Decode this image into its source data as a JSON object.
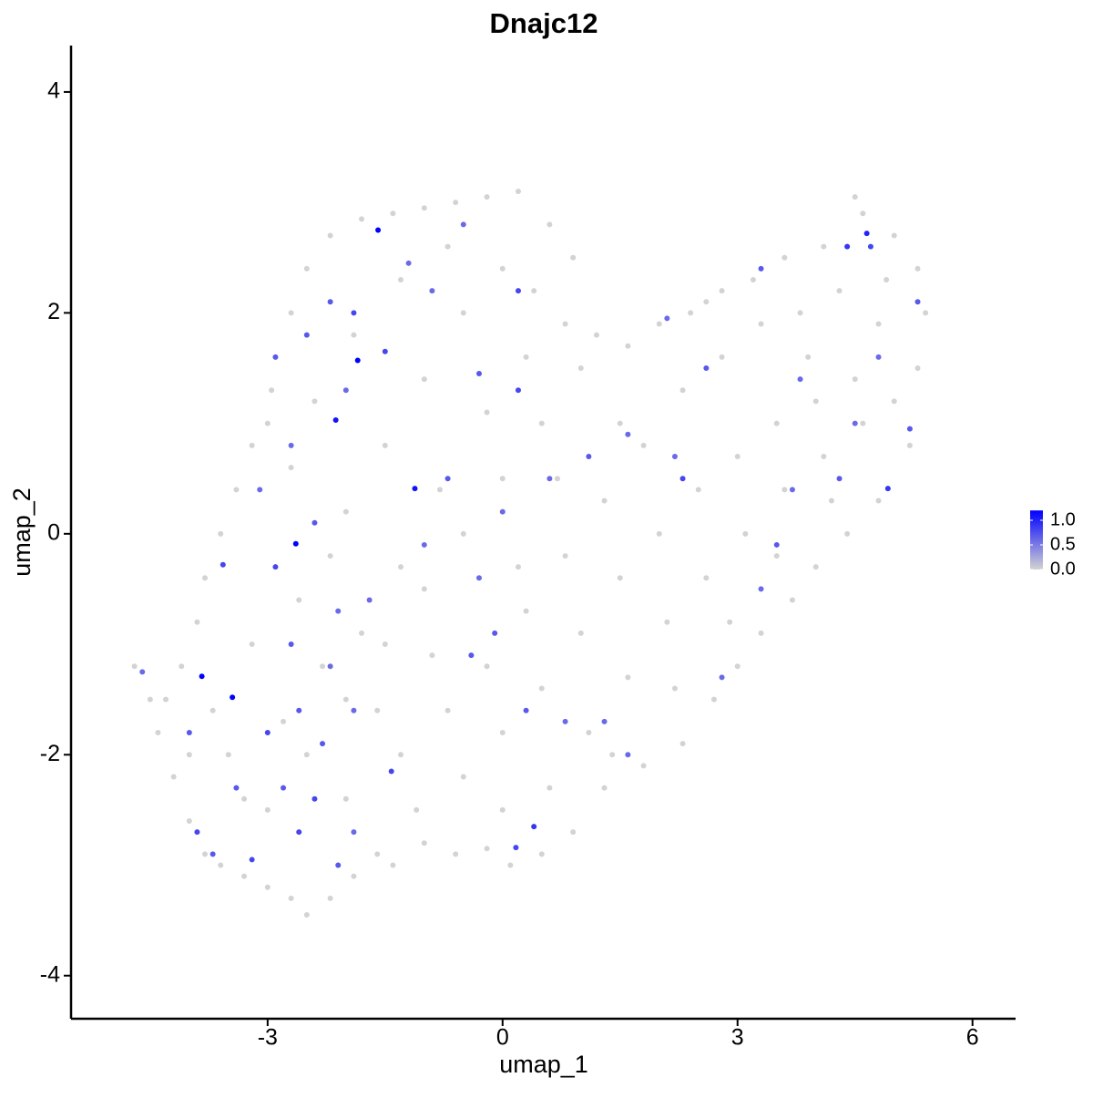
{
  "chart_data": {
    "type": "scatter",
    "title": "Dnajc12",
    "x_label": "umap_1",
    "y_label": "umap_2",
    "xlim": [
      -5.51,
      6.55
    ],
    "ylim": [
      -4.39,
      4.42
    ],
    "xticks": [
      -3,
      0,
      3,
      6
    ],
    "yticks": [
      -4,
      -2,
      0,
      2,
      4
    ],
    "color_low": "#d3d3d3",
    "color_high": "#0000ff",
    "color_lim": [
      0,
      1.2
    ],
    "legend_ticks": [
      {
        "value": 0,
        "label": "0.0"
      },
      {
        "value": 0.5,
        "label": "0.5"
      },
      {
        "value": 1,
        "label": "1.0"
      }
    ],
    "x": [
      -4.7,
      -4.5,
      -4.4,
      -4.2,
      -4.0,
      -3.8,
      -3.6,
      -3.3,
      -3.0,
      -2.7,
      -2.5,
      -2.2,
      -1.9,
      -1.6,
      -1.4,
      -1.0,
      -0.6,
      -0.2,
      0.1,
      0.5,
      0.9,
      1.3,
      1.8,
      2.3,
      2.7,
      3.0,
      3.3,
      3.7,
      4.0,
      4.4,
      4.8,
      5.2,
      5.3,
      5.4,
      5.3,
      5.0,
      4.6,
      4.5,
      4.1,
      3.6,
      3.2,
      2.8,
      2.4,
      2.0,
      1.6,
      1.2,
      0.8,
      0.9,
      0.6,
      0.2,
      -0.2,
      -0.6,
      -1.0,
      -1.4,
      -1.8,
      -2.2,
      -2.5,
      -2.7,
      -2.95,
      -3.0,
      -3.2,
      -3.4,
      -3.6,
      -3.8,
      -3.9,
      -4.1,
      -4.3,
      -3.5,
      -3.0,
      -2.5,
      -2.0,
      -1.5,
      -1.0,
      -0.5,
      0.0,
      0.5,
      1.0,
      -3.2,
      -2.6,
      -2.0,
      -1.5,
      -1.0,
      -0.5,
      0.0,
      -2.4,
      -1.9,
      -1.3,
      -0.7,
      0.4,
      0.3,
      -0.2,
      -0.8,
      -1.3,
      -1.8,
      -2.3,
      -2.8,
      -3.3,
      -2.0,
      -1.3,
      -0.7,
      -0.2,
      0.3,
      0.8,
      1.3,
      1.8,
      2.3,
      2.8,
      3.3,
      3.8,
      4.3,
      4.8,
      4.5,
      4.0,
      3.5,
      3.0,
      2.5,
      2.0,
      1.5,
      1.0,
      0.5,
      0.0,
      -0.5,
      0.6,
      1.1,
      1.6,
      2.1,
      2.6,
      3.1,
      3.6,
      4.1,
      4.6,
      5.0,
      2.2,
      2.9,
      3.5,
      4.2,
      -4.0,
      -3.7,
      -2.7,
      -2.2,
      -1.6,
      -0.9,
      0.2,
      0.7,
      1.5,
      2.6,
      3.9,
      4.9,
      -1.1,
      0.0,
      1.4,
      -1.59,
      -1.85,
      -2.13,
      -1.12,
      -2.64,
      -3.84,
      -3.45,
      4.65,
      4.92,
      0.17,
      -1.42,
      -3.57,
      -4.6,
      -4.0,
      -3.9,
      -3.2,
      -2.6,
      -2.1,
      -2.8,
      -2.3,
      -3.0,
      -2.6,
      -1.9,
      -2.2,
      -2.7,
      -2.1,
      -2.9,
      -2.4,
      -3.1,
      -2.7,
      -2.9,
      -2.5,
      -2.2,
      -1.9,
      -1.5,
      -2.0,
      -1.2,
      -0.5,
      -0.9,
      -0.3,
      0.2,
      0.2,
      -0.7,
      0.0,
      -0.3,
      -0.4,
      0.3,
      0.4,
      0.8,
      1.3,
      1.6,
      0.6,
      1.1,
      1.6,
      2.2,
      2.3,
      2.6,
      2.1,
      3.3,
      3.7,
      3.5,
      4.3,
      4.5,
      4.8,
      5.2,
      5.3,
      4.4,
      4.7,
      3.8,
      2.8,
      3.3,
      -1.7,
      -1.0,
      -0.1,
      -3.4,
      -3.7,
      -2.4,
      -1.9
    ],
    "y": [
      -1.2,
      -1.5,
      -1.8,
      -2.2,
      -2.6,
      -2.9,
      -3.0,
      -3.1,
      -3.2,
      -3.3,
      -3.45,
      -3.3,
      -3.1,
      -2.9,
      -3.0,
      -2.8,
      -2.9,
      -2.85,
      -3.0,
      -2.9,
      -2.7,
      -2.3,
      -2.1,
      -1.9,
      -1.5,
      -1.2,
      -0.9,
      -0.6,
      -0.3,
      0.0,
      0.3,
      0.8,
      1.5,
      2.0,
      2.4,
      2.7,
      2.9,
      3.05,
      2.6,
      2.5,
      2.3,
      2.2,
      2.0,
      1.9,
      1.7,
      1.8,
      1.9,
      2.5,
      2.8,
      3.1,
      3.05,
      3.0,
      2.95,
      2.9,
      2.85,
      2.7,
      2.4,
      2.0,
      1.3,
      1.0,
      0.8,
      0.4,
      0.0,
      -0.4,
      -0.8,
      -1.2,
      -1.5,
      -2.0,
      -2.5,
      -2.0,
      -1.5,
      -1.0,
      -0.5,
      0.0,
      0.5,
      1.0,
      1.5,
      -1.0,
      -0.6,
      0.2,
      0.8,
      1.4,
      2.0,
      2.4,
      1.2,
      1.8,
      2.3,
      2.6,
      2.2,
      1.6,
      1.1,
      0.4,
      -0.3,
      -0.9,
      -1.2,
      -1.7,
      -2.4,
      -2.4,
      -2.0,
      -1.6,
      -1.2,
      -0.7,
      -0.2,
      0.3,
      0.8,
      1.3,
      1.6,
      1.9,
      2.0,
      2.2,
      1.9,
      1.4,
      1.2,
      1.0,
      0.7,
      0.4,
      0.0,
      -0.4,
      -0.9,
      -1.4,
      -1.8,
      -2.2,
      -2.3,
      -1.8,
      -1.3,
      -0.8,
      -0.4,
      0.0,
      0.4,
      0.7,
      1.0,
      1.2,
      -1.4,
      -0.8,
      -0.2,
      0.3,
      -2.0,
      -1.6,
      0.6,
      -0.2,
      -1.6,
      -1.1,
      -0.3,
      0.5,
      1.0,
      2.1,
      1.6,
      2.3,
      -2.5,
      -2.5,
      -2.0,
      2.75,
      1.57,
      1.03,
      0.41,
      -0.09,
      -1.29,
      -1.48,
      2.72,
      0.41,
      -2.84,
      -2.15,
      -0.28,
      -1.25,
      -1.8,
      -2.7,
      -2.95,
      -2.7,
      -3.0,
      -2.3,
      -1.9,
      -1.8,
      -1.6,
      -1.6,
      -1.2,
      -1.0,
      -0.7,
      -0.3,
      0.1,
      0.4,
      0.8,
      1.6,
      1.8,
      2.1,
      2.0,
      1.65,
      1.3,
      2.45,
      2.8,
      2.2,
      1.45,
      1.3,
      2.2,
      0.5,
      0.2,
      -0.4,
      -1.1,
      -1.6,
      -2.65,
      -1.7,
      -1.7,
      -2.0,
      0.5,
      0.7,
      0.9,
      0.7,
      0.5,
      1.5,
      1.95,
      2.4,
      0.4,
      -0.1,
      0.5,
      1.0,
      1.6,
      0.95,
      2.1,
      2.6,
      2.6,
      1.4,
      -1.3,
      -0.5,
      -0.6,
      -0.1,
      -0.9,
      -2.3,
      -2.9,
      -2.4,
      -2.7
    ],
    "expression": [
      0,
      0,
      0,
      0,
      0,
      0,
      0,
      0,
      0,
      0,
      0,
      0,
      0,
      0,
      0,
      0,
      0,
      0,
      0,
      0,
      0,
      0,
      0,
      0,
      0,
      0,
      0,
      0,
      0,
      0,
      0,
      0,
      0,
      0,
      0,
      0,
      0,
      0,
      0,
      0,
      0,
      0,
      0,
      0,
      0,
      0,
      0,
      0,
      0,
      0,
      0,
      0,
      0,
      0,
      0,
      0,
      0,
      0,
      0,
      0,
      0,
      0,
      0,
      0,
      0,
      0,
      0,
      0,
      0,
      0,
      0,
      0,
      0,
      0,
      0,
      0,
      0,
      0,
      0,
      0,
      0,
      0,
      0,
      0,
      0,
      0,
      0,
      0,
      0,
      0,
      0,
      0,
      0,
      0,
      0,
      0,
      0,
      0,
      0,
      0,
      0,
      0,
      0,
      0,
      0,
      0,
      0,
      0,
      0,
      0,
      0,
      0,
      0,
      0,
      0,
      0,
      0,
      0,
      0,
      0,
      0,
      0,
      0,
      0,
      0,
      0,
      0,
      0,
      0,
      0,
      0,
      0,
      0,
      0,
      0,
      0,
      0,
      0,
      0,
      0,
      0,
      0,
      0,
      0,
      0,
      0,
      0,
      0,
      0,
      0,
      0,
      1.2,
      1.2,
      1.1,
      1.1,
      1.2,
      1.2,
      1.2,
      1.0,
      0.9,
      0.8,
      0.8,
      0.8,
      0.6,
      0.7,
      0.8,
      0.8,
      0.8,
      0.7,
      0.7,
      0.7,
      0.8,
      0.7,
      0.6,
      0.6,
      0.7,
      0.6,
      0.8,
      0.7,
      0.6,
      0.6,
      0.7,
      0.7,
      0.7,
      0.8,
      0.8,
      0.6,
      0.6,
      0.6,
      0.6,
      0.7,
      0.8,
      0.8,
      0.7,
      0.6,
      0.6,
      0.7,
      0.7,
      0.9,
      0.6,
      0.6,
      0.6,
      0.6,
      0.7,
      0.6,
      0.6,
      0.8,
      0.7,
      0.6,
      0.7,
      0.6,
      0.7,
      0.7,
      0.6,
      0.6,
      0.7,
      0.7,
      0.9,
      0.8,
      0.6,
      0.6,
      0.6,
      0.6,
      0.6,
      0.7,
      0.7,
      0.7,
      0.8,
      0.6
    ]
  }
}
